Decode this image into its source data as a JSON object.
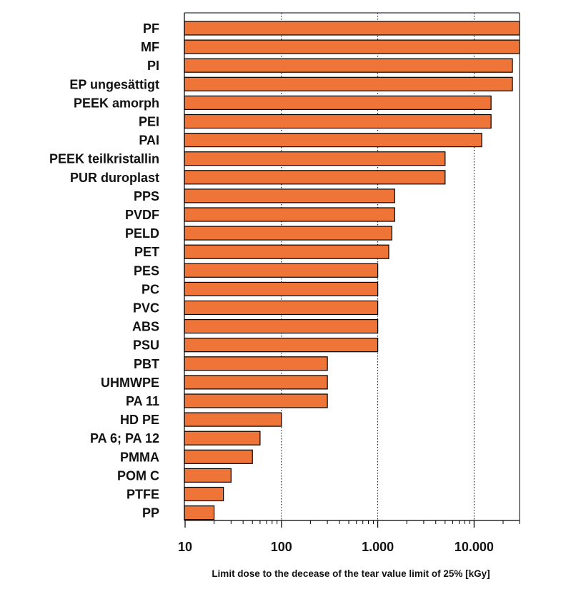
{
  "chart_data": {
    "type": "bar",
    "orientation": "horizontal",
    "title": "",
    "xlabel": "Limit dose to the decease of the tear value limit  of 25% [kGy]",
    "ylabel": "",
    "x_scale": "log",
    "xlim": [
      10,
      30000
    ],
    "x_ticks": [
      10,
      100,
      1000,
      10000
    ],
    "x_tick_labels": [
      "10",
      "100",
      "1.000",
      "10.000"
    ],
    "grid": "vertical dotted at major ticks",
    "legend": "none",
    "bar_color": "#EE7437",
    "categories": [
      "PF",
      "MF",
      "PI",
      "EP ungesättigt",
      "PEEK amorph",
      "PEI",
      "PAI",
      "PEEK teilkristallin",
      "PUR duroplast",
      "PPS",
      "PVDF",
      "PELD",
      "PET",
      "PES",
      "PC",
      "PVC",
      "ABS",
      "PSU",
      "PBT",
      "UHMWPE",
      "PA 11",
      "HD PE",
      "PA 6; PA 12",
      "PMMA",
      "POM C",
      "PTFE",
      "PP"
    ],
    "values": [
      30000,
      30000,
      25000,
      25000,
      15000,
      15000,
      12000,
      5000,
      5000,
      1500,
      1500,
      1400,
      1300,
      1000,
      1000,
      1000,
      1000,
      1000,
      300,
      300,
      300,
      100,
      60,
      50,
      30,
      25,
      20
    ]
  }
}
